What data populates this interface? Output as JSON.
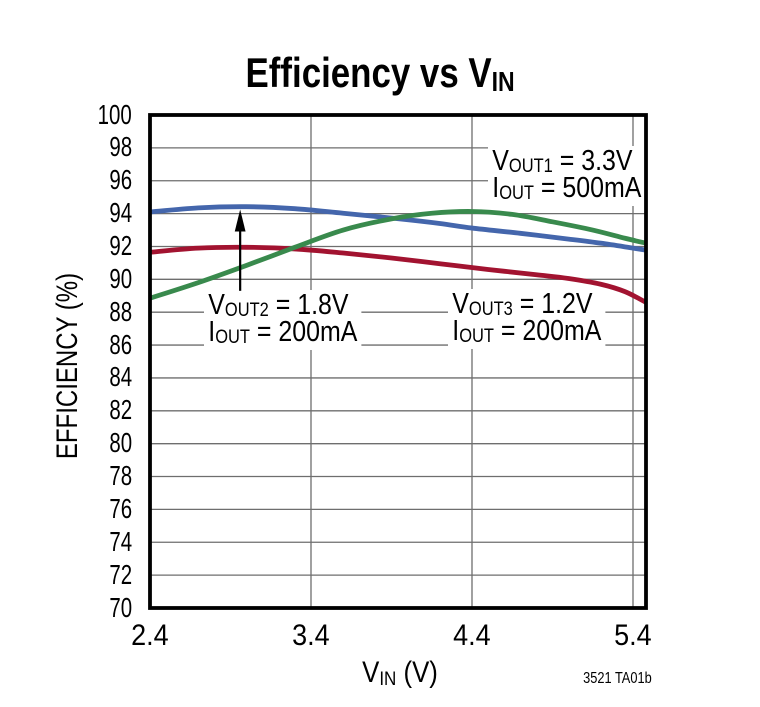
{
  "title": {
    "pre": "Efficiency vs V",
    "sub": "IN"
  },
  "note": "3521 TA01b",
  "chart_data": {
    "type": "line",
    "title": "Efficiency vs VIN",
    "xlabel": {
      "pre": "V",
      "sub": "IN",
      "post": " (V)"
    },
    "ylabel": "EFFICIENCY (%)",
    "xlim": [
      2.4,
      5.48
    ],
    "ylim": [
      70,
      100
    ],
    "x_ticks": [
      2.4,
      3.4,
      4.4,
      5.4
    ],
    "x_tick_labels": [
      "2.4",
      "3.4",
      "4.4",
      "5.4"
    ],
    "y_tick_labels": [
      "100",
      "98",
      "96",
      "94",
      "92",
      "90",
      "88",
      "86",
      "84",
      "82",
      "80",
      "78",
      "76",
      "74",
      "72",
      "70"
    ],
    "grid": true,
    "legend_position": "inline-annotations",
    "series": [
      {
        "name": "VOUT1 = 3.3V, IOUT = 500mA",
        "color": "#398a4d",
        "points": [
          [
            2.4,
            88.85
          ],
          [
            2.7,
            89.8
          ],
          [
            3.0,
            90.85
          ],
          [
            3.3,
            91.95
          ],
          [
            3.6,
            93.0
          ],
          [
            3.9,
            93.68
          ],
          [
            4.15,
            94.02
          ],
          [
            4.4,
            94.13
          ],
          [
            4.65,
            93.95
          ],
          [
            4.9,
            93.5
          ],
          [
            5.15,
            93.0
          ],
          [
            5.35,
            92.5
          ],
          [
            5.48,
            92.2
          ]
        ]
      },
      {
        "name": "VOUT2 = 1.8V, IOUT = 200mA",
        "color": "#4466ac",
        "points": [
          [
            2.4,
            94.1
          ],
          [
            2.7,
            94.35
          ],
          [
            3.0,
            94.42
          ],
          [
            3.3,
            94.3
          ],
          [
            3.6,
            94.02
          ],
          [
            3.95,
            93.68
          ],
          [
            4.2,
            93.4
          ],
          [
            4.4,
            93.12
          ],
          [
            4.7,
            92.8
          ],
          [
            5.0,
            92.45
          ],
          [
            5.2,
            92.2
          ],
          [
            5.4,
            91.9
          ],
          [
            5.48,
            91.78
          ]
        ]
      },
      {
        "name": "VOUT3 = 1.2V, IOUT = 200mA",
        "color": "#a21330",
        "points": [
          [
            2.4,
            91.65
          ],
          [
            2.7,
            91.9
          ],
          [
            3.0,
            91.95
          ],
          [
            3.3,
            91.85
          ],
          [
            3.6,
            91.6
          ],
          [
            3.9,
            91.3
          ],
          [
            4.2,
            90.95
          ],
          [
            4.5,
            90.6
          ],
          [
            4.8,
            90.28
          ],
          [
            5.0,
            90.05
          ],
          [
            5.2,
            89.7
          ],
          [
            5.35,
            89.25
          ],
          [
            5.48,
            88.6
          ]
        ]
      }
    ],
    "annotations": [
      {
        "line1": {
          "pre": "V",
          "sub": "OUT1",
          "post": " = 3.3V"
        },
        "line2": {
          "pre": "I",
          "sub": "OUT",
          "post": " = 500mA"
        }
      },
      {
        "line1": {
          "pre": "V",
          "sub": "OUT2",
          "post": " = 1.8V"
        },
        "line2": {
          "pre": "I",
          "sub": "OUT",
          "post": " = 200mA"
        }
      },
      {
        "line1": {
          "pre": "V",
          "sub": "OUT3",
          "post": " = 1.2V"
        },
        "line2": {
          "pre": "I",
          "sub": "OUT",
          "post": " = 200mA"
        }
      }
    ],
    "arrow": {
      "x_v": 2.96,
      "tail_e": 89.3,
      "tip_e": 94.25
    },
    "note": "3521 TA01b"
  }
}
